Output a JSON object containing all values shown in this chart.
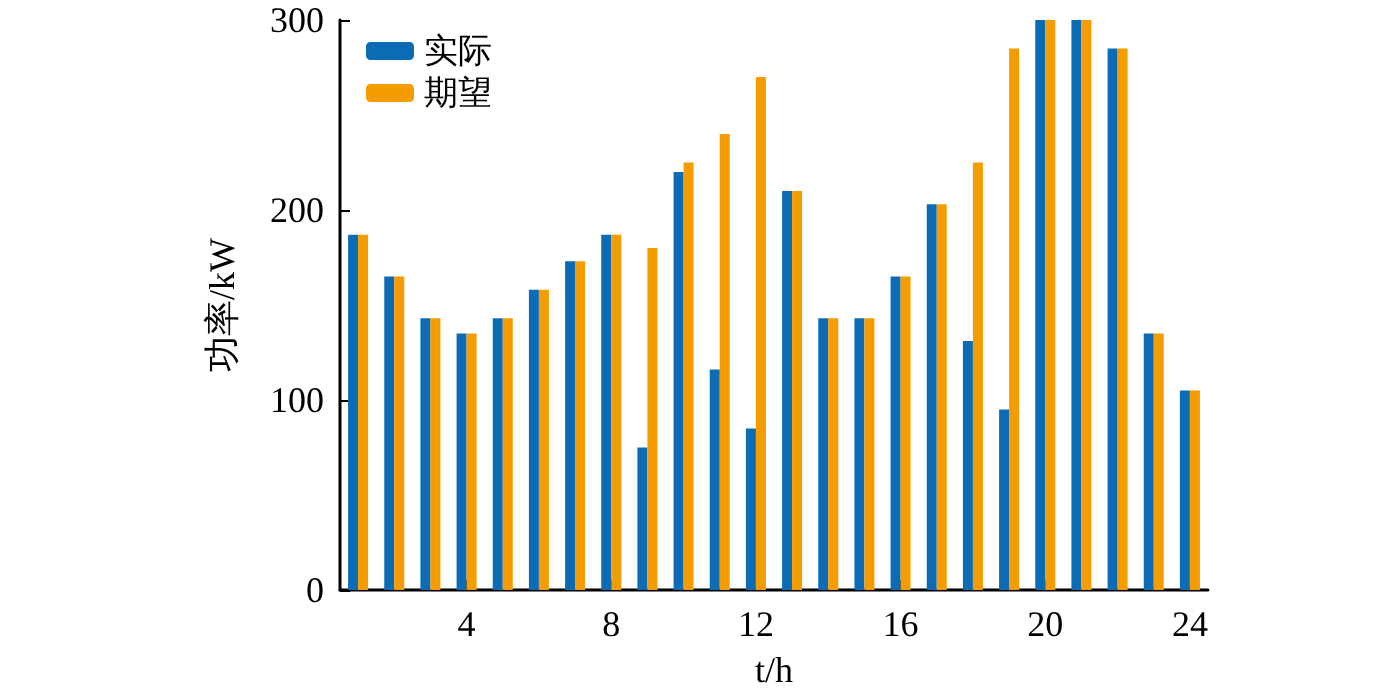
{
  "chart_data": {
    "type": "bar",
    "xlabel": "t/h",
    "ylabel": "功率/kW",
    "x": [
      1,
      2,
      3,
      4,
      5,
      6,
      7,
      8,
      9,
      10,
      11,
      12,
      13,
      14,
      15,
      16,
      17,
      18,
      19,
      20,
      21,
      22,
      23,
      24
    ],
    "series": [
      {
        "name": "实际",
        "color": "#0b6cb5",
        "values": [
          187,
          165,
          143,
          135,
          143,
          158,
          173,
          187,
          75,
          220,
          116,
          85,
          210,
          143,
          143,
          165,
          203,
          131,
          95,
          300,
          300,
          285,
          135,
          105
        ]
      },
      {
        "name": "期望",
        "color": "#f59c00",
        "values": [
          187,
          165,
          143,
          135,
          143,
          158,
          173,
          187,
          180,
          225,
          240,
          270,
          210,
          143,
          143,
          165,
          203,
          225,
          285,
          300,
          300,
          285,
          135,
          105
        ]
      }
    ],
    "xlim": [
      0.5,
      24.5
    ],
    "xticks": [
      4,
      8,
      12,
      16,
      20,
      24
    ],
    "ylim": [
      0,
      300
    ],
    "yticks": [
      0,
      100,
      200,
      300
    ],
    "grid": false,
    "legend": "top left"
  }
}
